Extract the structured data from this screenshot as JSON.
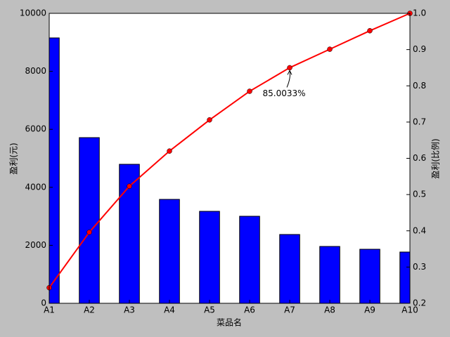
{
  "chart_data": {
    "type": "pareto",
    "categories": [
      "A1",
      "A2",
      "A3",
      "A4",
      "A5",
      "A6",
      "A7",
      "A8",
      "A9",
      "A10"
    ],
    "series": [
      {
        "type": "bar",
        "color": "#0000ff",
        "values": [
          9153,
          5714,
          4794,
          3584,
          3172,
          3002,
          2373,
          1961,
          1864,
          1768
        ]
      },
      {
        "type": "line",
        "axis": "y2",
        "color": "#ff0000",
        "values": [
          0.243,
          0.396,
          0.523,
          0.62,
          0.706,
          0.785,
          0.85,
          0.901,
          0.952,
          1.0
        ]
      }
    ],
    "xlabel": "菜品名",
    "ylabel": "盈利(元)",
    "y2label": "盈利(比例)",
    "ylim": [
      0,
      10000
    ],
    "yticks": [
      0,
      2000,
      4000,
      6000,
      8000,
      10000
    ],
    "y2lim": [
      0.2,
      1.0
    ],
    "y2ticks": [
      0.2,
      0.3,
      0.4,
      0.5,
      0.6,
      0.7,
      0.8,
      0.9,
      {
        "value": 1,
        "label": "1.0"
      }
    ],
    "annotation": {
      "text": "85.0033%",
      "index": 6
    },
    "grid": false
  }
}
